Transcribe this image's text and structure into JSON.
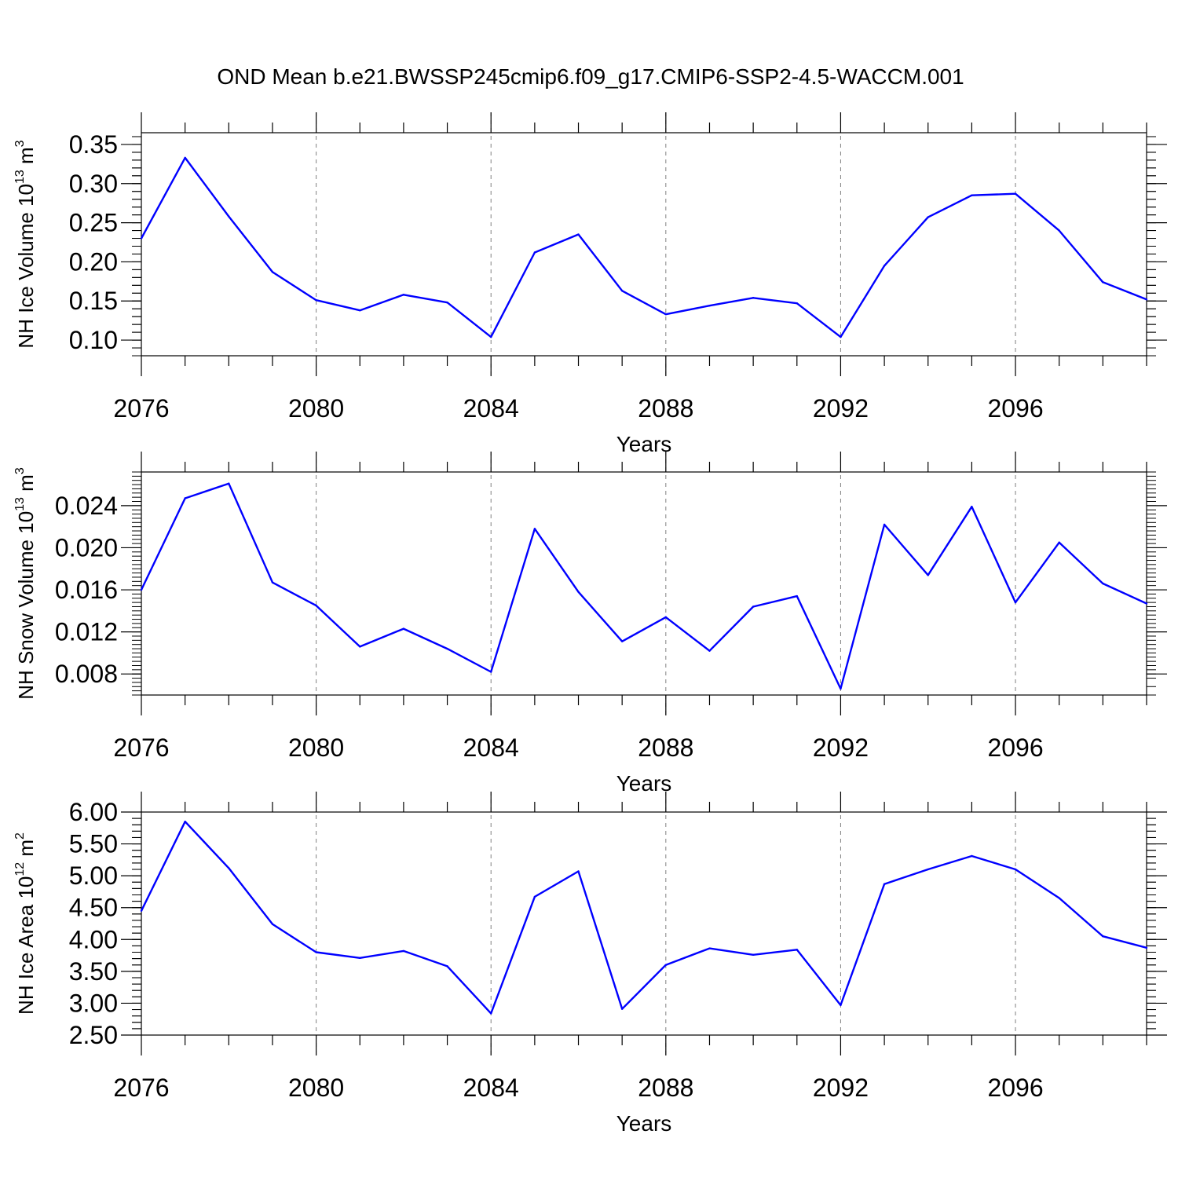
{
  "title": "OND Mean b.e21.BWSSP245cmip6.f09_g17.CMIP6-SSP2-4.5-WACCM.001",
  "colors": {
    "line": "#0000ff",
    "axes": "#000000",
    "grid": "#808080"
  },
  "chart_data": [
    {
      "type": "line",
      "ylabel": {
        "main": "NH Ice Volume 10",
        "exp": "13",
        "unit": " m",
        "unit_exp": "3"
      },
      "xlabel": "Years",
      "xlim": [
        2076,
        2099
      ],
      "ylim": [
        0.08,
        0.365
      ],
      "xticks": [
        "2076",
        "2080",
        "2084",
        "2088",
        "2092",
        "2096"
      ],
      "yticks": [
        "0.10",
        "0.15",
        "0.20",
        "0.25",
        "0.30",
        "0.35"
      ],
      "grid": "vertical-dashed",
      "x": [
        2076,
        2077,
        2078,
        2079,
        2080,
        2081,
        2082,
        2083,
        2084,
        2085,
        2086,
        2087,
        2088,
        2089,
        2090,
        2091,
        2092,
        2093,
        2094,
        2095,
        2096,
        2097,
        2098,
        2099
      ],
      "values": [
        0.23,
        0.333,
        0.258,
        0.187,
        0.151,
        0.138,
        0.158,
        0.148,
        0.104,
        0.212,
        0.235,
        0.163,
        0.133,
        0.144,
        0.154,
        0.147,
        0.104,
        0.195,
        0.257,
        0.285,
        0.287,
        0.24,
        0.174,
        0.152
      ]
    },
    {
      "type": "line",
      "ylabel": {
        "main": "NH Snow Volume 10",
        "exp": "13",
        "unit": " m",
        "unit_exp": "3"
      },
      "xlabel": "Years",
      "xlim": [
        2076,
        2099
      ],
      "ylim": [
        0.006,
        0.0272
      ],
      "xticks": [
        "2076",
        "2080",
        "2084",
        "2088",
        "2092",
        "2096"
      ],
      "yticks": [
        "0.008",
        "0.012",
        "0.016",
        "0.020",
        "0.024"
      ],
      "grid": "vertical-dashed",
      "x": [
        2076,
        2077,
        2078,
        2079,
        2080,
        2081,
        2082,
        2083,
        2084,
        2085,
        2086,
        2087,
        2088,
        2089,
        2090,
        2091,
        2092,
        2093,
        2094,
        2095,
        2096,
        2097,
        2098,
        2099
      ],
      "values": [
        0.016,
        0.0247,
        0.0261,
        0.0167,
        0.0145,
        0.0106,
        0.0123,
        0.0104,
        0.0082,
        0.0218,
        0.0158,
        0.0111,
        0.0134,
        0.0102,
        0.0144,
        0.0154,
        0.0066,
        0.0222,
        0.0174,
        0.0239,
        0.0148,
        0.0205,
        0.0166,
        0.0147
      ]
    },
    {
      "type": "line",
      "ylabel": {
        "main": "NH Ice Area 10",
        "exp": "12",
        "unit": " m",
        "unit_exp": "2"
      },
      "xlabel": "Years",
      "xlim": [
        2076,
        2099
      ],
      "ylim": [
        2.5,
        6.0
      ],
      "xticks": [
        "2076",
        "2080",
        "2084",
        "2088",
        "2092",
        "2096"
      ],
      "yticks": [
        "2.50",
        "3.00",
        "3.50",
        "4.00",
        "4.50",
        "5.00",
        "5.50",
        "6.00"
      ],
      "grid": "vertical-dashed",
      "x": [
        2076,
        2077,
        2078,
        2079,
        2080,
        2081,
        2082,
        2083,
        2084,
        2085,
        2086,
        2087,
        2088,
        2089,
        2090,
        2091,
        2092,
        2093,
        2094,
        2095,
        2096,
        2097,
        2098,
        2099
      ],
      "values": [
        4.45,
        5.85,
        5.12,
        4.24,
        3.8,
        3.71,
        3.82,
        3.58,
        2.84,
        4.67,
        5.07,
        2.91,
        3.6,
        3.86,
        3.76,
        3.84,
        2.97,
        4.87,
        5.1,
        5.31,
        5.1,
        4.65,
        4.05,
        3.87
      ]
    }
  ]
}
